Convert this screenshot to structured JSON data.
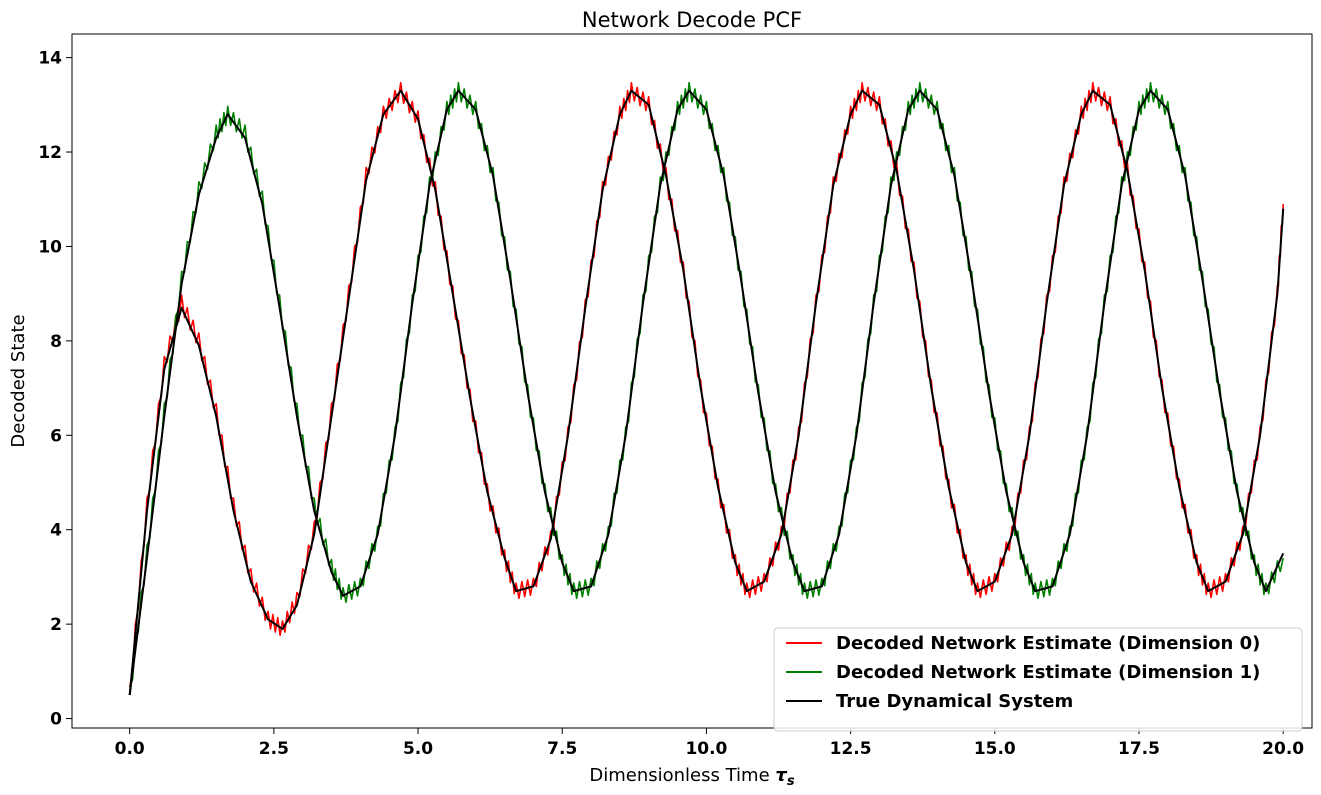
{
  "chart_data": {
    "type": "line",
    "title": "Network Decode PCF",
    "xlabel": "Dimensionless Time",
    "xlabel_symbol": "τ",
    "xlabel_symbol_sub": "s",
    "ylabel": "Decoded State",
    "xlim": [
      -1.0,
      20.5
    ],
    "ylim": [
      -0.2,
      14.5
    ],
    "xticks": [
      0.0,
      2.5,
      5.0,
      7.5,
      10.0,
      12.5,
      15.0,
      17.5,
      20.0
    ],
    "xtick_labels": [
      "0.0",
      "2.5",
      "5.0",
      "7.5",
      "10.0",
      "12.5",
      "15.0",
      "17.5",
      "20.0"
    ],
    "yticks": [
      0,
      2,
      4,
      6,
      8,
      10,
      12,
      14
    ],
    "ytick_labels": [
      "0",
      "2",
      "4",
      "6",
      "8",
      "10",
      "12",
      "14"
    ],
    "grid": false,
    "legend_position": "bottom-right",
    "series": [
      {
        "name": "Decoded Network Estimate (Dimension 0)",
        "color": "#ff0000",
        "noisy": true,
        "x": [
          0.0,
          0.3,
          0.6,
          0.9,
          1.2,
          1.5,
          1.8,
          2.1,
          2.4,
          2.65,
          2.9,
          3.2,
          3.5,
          3.8,
          4.1,
          4.4,
          4.7,
          5.0,
          5.3,
          5.6,
          5.9,
          6.2,
          6.5,
          6.7,
          7.0,
          7.3,
          7.6,
          7.9,
          8.2,
          8.5,
          8.7,
          9.0,
          9.3,
          9.6,
          9.9,
          10.2,
          10.5,
          10.7,
          11.0,
          11.3,
          11.6,
          11.9,
          12.2,
          12.5,
          12.7,
          13.0,
          13.3,
          13.6,
          13.9,
          14.2,
          14.5,
          14.7,
          15.0,
          15.3,
          15.6,
          15.9,
          16.2,
          16.5,
          16.7,
          17.0,
          17.3,
          17.6,
          17.9,
          18.2,
          18.5,
          18.7,
          19.0,
          19.3,
          19.6,
          19.9,
          20.0
        ],
        "y": [
          0.5,
          4.5,
          7.5,
          8.8,
          8.0,
          6.5,
          4.5,
          3.0,
          2.1,
          1.9,
          2.5,
          4.0,
          6.5,
          9.0,
          11.5,
          12.8,
          13.3,
          12.7,
          11.2,
          9.0,
          6.8,
          4.8,
          3.4,
          2.7,
          2.8,
          3.8,
          6.0,
          8.7,
          11.2,
          12.8,
          13.3,
          13.0,
          11.5,
          9.5,
          7.0,
          4.9,
          3.3,
          2.7,
          2.9,
          3.9,
          6.0,
          8.8,
          11.3,
          12.8,
          13.3,
          13.0,
          11.6,
          9.5,
          7.0,
          4.9,
          3.3,
          2.7,
          2.9,
          3.9,
          6.0,
          8.8,
          11.3,
          12.8,
          13.3,
          13.0,
          11.6,
          9.5,
          7.0,
          4.9,
          3.3,
          2.7,
          2.9,
          3.9,
          6.0,
          9.0,
          10.9
        ]
      },
      {
        "name": "Decoded Network Estimate (Dimension 1)",
        "color": "#008000",
        "noisy": true,
        "x": [
          0.0,
          0.3,
          0.6,
          0.9,
          1.2,
          1.5,
          1.7,
          2.0,
          2.3,
          2.6,
          2.9,
          3.2,
          3.5,
          3.7,
          4.0,
          4.3,
          4.6,
          4.9,
          5.2,
          5.5,
          5.7,
          6.0,
          6.3,
          6.6,
          6.9,
          7.2,
          7.5,
          7.7,
          8.0,
          8.3,
          8.6,
          8.9,
          9.2,
          9.5,
          9.7,
          10.0,
          10.3,
          10.6,
          10.9,
          11.2,
          11.5,
          11.7,
          12.0,
          12.3,
          12.6,
          12.9,
          13.2,
          13.5,
          13.7,
          14.0,
          14.3,
          14.6,
          14.9,
          15.2,
          15.5,
          15.7,
          16.0,
          16.3,
          16.6,
          16.9,
          17.2,
          17.5,
          17.7,
          18.0,
          18.3,
          18.6,
          18.9,
          19.2,
          19.5,
          19.7,
          20.0
        ],
        "y": [
          0.5,
          3.5,
          6.5,
          9.3,
          11.2,
          12.4,
          12.8,
          12.4,
          11.0,
          8.8,
          6.5,
          4.5,
          3.2,
          2.6,
          2.8,
          3.9,
          6.0,
          8.8,
          11.3,
          12.9,
          13.3,
          12.9,
          11.5,
          9.3,
          6.9,
          4.8,
          3.3,
          2.7,
          2.8,
          3.9,
          6.0,
          8.8,
          11.3,
          12.9,
          13.3,
          12.9,
          11.5,
          9.3,
          6.9,
          4.8,
          3.3,
          2.7,
          2.8,
          3.9,
          6.0,
          8.8,
          11.3,
          12.9,
          13.3,
          12.9,
          11.5,
          9.3,
          6.9,
          4.8,
          3.3,
          2.7,
          2.8,
          3.9,
          6.0,
          8.8,
          11.3,
          12.9,
          13.3,
          12.9,
          11.5,
          9.3,
          6.9,
          4.8,
          3.3,
          2.7,
          3.4
        ]
      },
      {
        "name": "True Dynamical System",
        "color": "#000000",
        "noisy": false,
        "x": [
          0.0,
          0.3,
          0.6,
          0.9,
          1.2,
          1.5,
          1.8,
          2.1,
          2.4,
          2.65,
          2.9,
          3.2,
          3.5,
          3.8,
          4.1,
          4.4,
          4.7,
          5.0,
          5.3,
          5.6,
          5.9,
          6.2,
          6.5,
          6.7,
          7.0,
          7.3,
          7.6,
          7.9,
          8.2,
          8.5,
          8.7,
          9.0,
          9.3,
          9.6,
          9.9,
          10.2,
          10.5,
          10.7,
          11.0,
          11.3,
          11.6,
          11.9,
          12.2,
          12.5,
          12.7,
          13.0,
          13.3,
          13.6,
          13.9,
          14.2,
          14.5,
          14.7,
          15.0,
          15.3,
          15.6,
          15.9,
          16.2,
          16.5,
          16.7,
          17.0,
          17.3,
          17.6,
          17.9,
          18.2,
          18.5,
          18.7,
          19.0,
          19.3,
          19.6,
          19.9,
          20.0
        ],
        "y": [
          0.5,
          4.4,
          7.4,
          8.7,
          7.9,
          6.4,
          4.4,
          2.9,
          2.1,
          1.9,
          2.4,
          3.9,
          6.4,
          8.9,
          11.4,
          12.8,
          13.3,
          12.7,
          11.2,
          9.0,
          6.8,
          4.8,
          3.4,
          2.7,
          2.8,
          3.8,
          6.0,
          8.7,
          11.2,
          12.8,
          13.3,
          13.0,
          11.5,
          9.5,
          7.0,
          4.9,
          3.3,
          2.7,
          2.9,
          3.9,
          6.0,
          8.8,
          11.3,
          12.8,
          13.3,
          13.0,
          11.6,
          9.5,
          7.0,
          4.9,
          3.3,
          2.7,
          2.9,
          3.9,
          6.0,
          8.8,
          11.3,
          12.8,
          13.3,
          13.0,
          11.6,
          9.5,
          7.0,
          4.9,
          3.3,
          2.7,
          2.9,
          3.9,
          6.0,
          9.0,
          10.8
        ]
      },
      {
        "name": "",
        "color": "#000000",
        "noisy": false,
        "x": [
          0.0,
          0.3,
          0.6,
          0.9,
          1.2,
          1.5,
          1.7,
          2.0,
          2.3,
          2.6,
          2.9,
          3.2,
          3.5,
          3.7,
          4.0,
          4.3,
          4.6,
          4.9,
          5.2,
          5.5,
          5.7,
          6.0,
          6.3,
          6.6,
          6.9,
          7.2,
          7.5,
          7.7,
          8.0,
          8.3,
          8.6,
          8.9,
          9.2,
          9.5,
          9.7,
          10.0,
          10.3,
          10.6,
          10.9,
          11.2,
          11.5,
          11.7,
          12.0,
          12.3,
          12.6,
          12.9,
          13.2,
          13.5,
          13.7,
          14.0,
          14.3,
          14.6,
          14.9,
          15.2,
          15.5,
          15.7,
          16.0,
          16.3,
          16.6,
          16.9,
          17.2,
          17.5,
          17.7,
          18.0,
          18.3,
          18.6,
          18.9,
          19.2,
          19.5,
          19.7,
          20.0
        ],
        "y": [
          0.5,
          3.4,
          6.4,
          9.2,
          11.1,
          12.3,
          12.8,
          12.3,
          10.9,
          8.7,
          6.4,
          4.4,
          3.1,
          2.6,
          2.8,
          3.9,
          6.0,
          8.8,
          11.3,
          12.9,
          13.3,
          12.9,
          11.5,
          9.3,
          6.9,
          4.8,
          3.3,
          2.7,
          2.8,
          3.9,
          6.0,
          8.8,
          11.3,
          12.9,
          13.3,
          12.9,
          11.5,
          9.3,
          6.9,
          4.8,
          3.3,
          2.7,
          2.8,
          3.9,
          6.0,
          8.8,
          11.3,
          12.9,
          13.3,
          12.9,
          11.5,
          9.3,
          6.9,
          4.8,
          3.3,
          2.7,
          2.8,
          3.9,
          6.0,
          8.8,
          11.3,
          12.9,
          13.3,
          12.9,
          11.5,
          9.3,
          6.9,
          4.8,
          3.3,
          2.7,
          3.5
        ]
      }
    ]
  }
}
